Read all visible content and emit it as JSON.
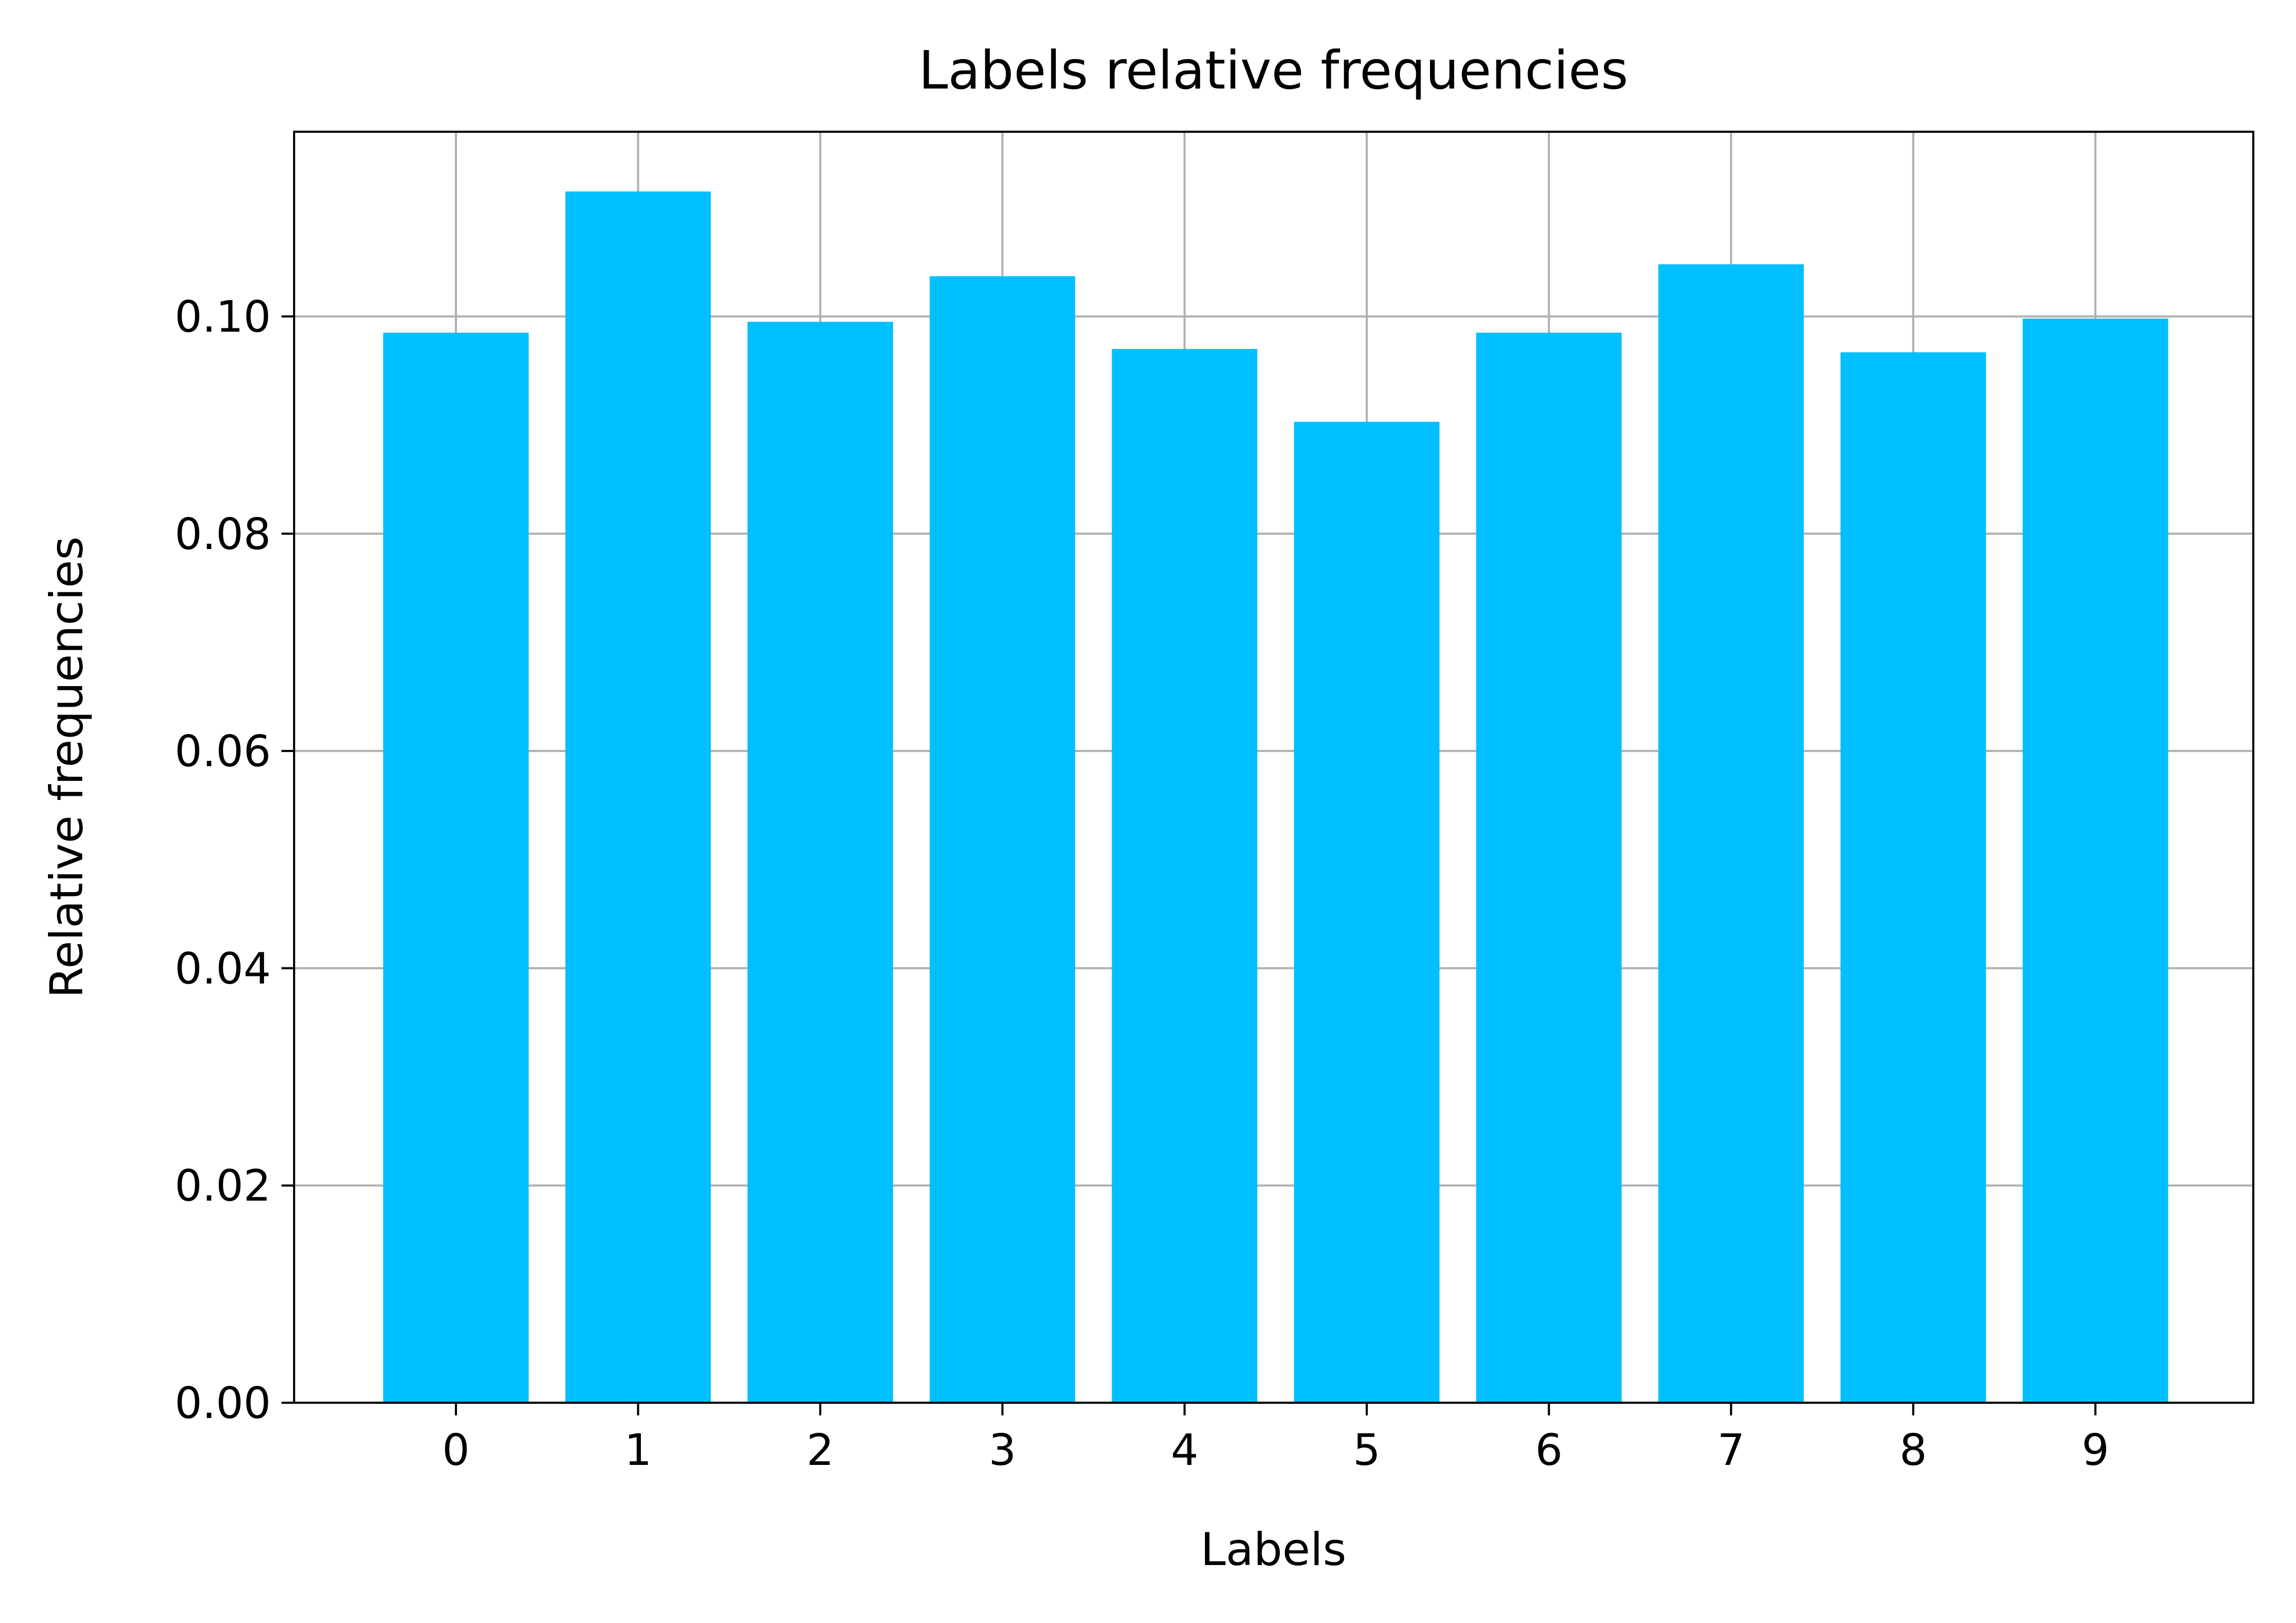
{
  "chart_data": {
    "type": "bar",
    "title": "Labels relative frequencies",
    "xlabel": "Labels",
    "ylabel": "Relative frequencies",
    "categories": [
      "0",
      "1",
      "2",
      "3",
      "4",
      "5",
      "6",
      "7",
      "8",
      "9"
    ],
    "values": [
      0.0985,
      0.1115,
      0.0995,
      0.1037,
      0.097,
      0.0903,
      0.0985,
      0.1048,
      0.0967,
      0.0998
    ],
    "ylim": [
      0,
      0.117
    ],
    "yticks": [
      0.0,
      0.02,
      0.04,
      0.06,
      0.08,
      0.1
    ],
    "ytick_labels": [
      "0.00",
      "0.02",
      "0.04",
      "0.06",
      "0.08",
      "0.10"
    ],
    "grid": true,
    "bar_color": "#00bfff",
    "grid_color": "#b0b0b0"
  }
}
